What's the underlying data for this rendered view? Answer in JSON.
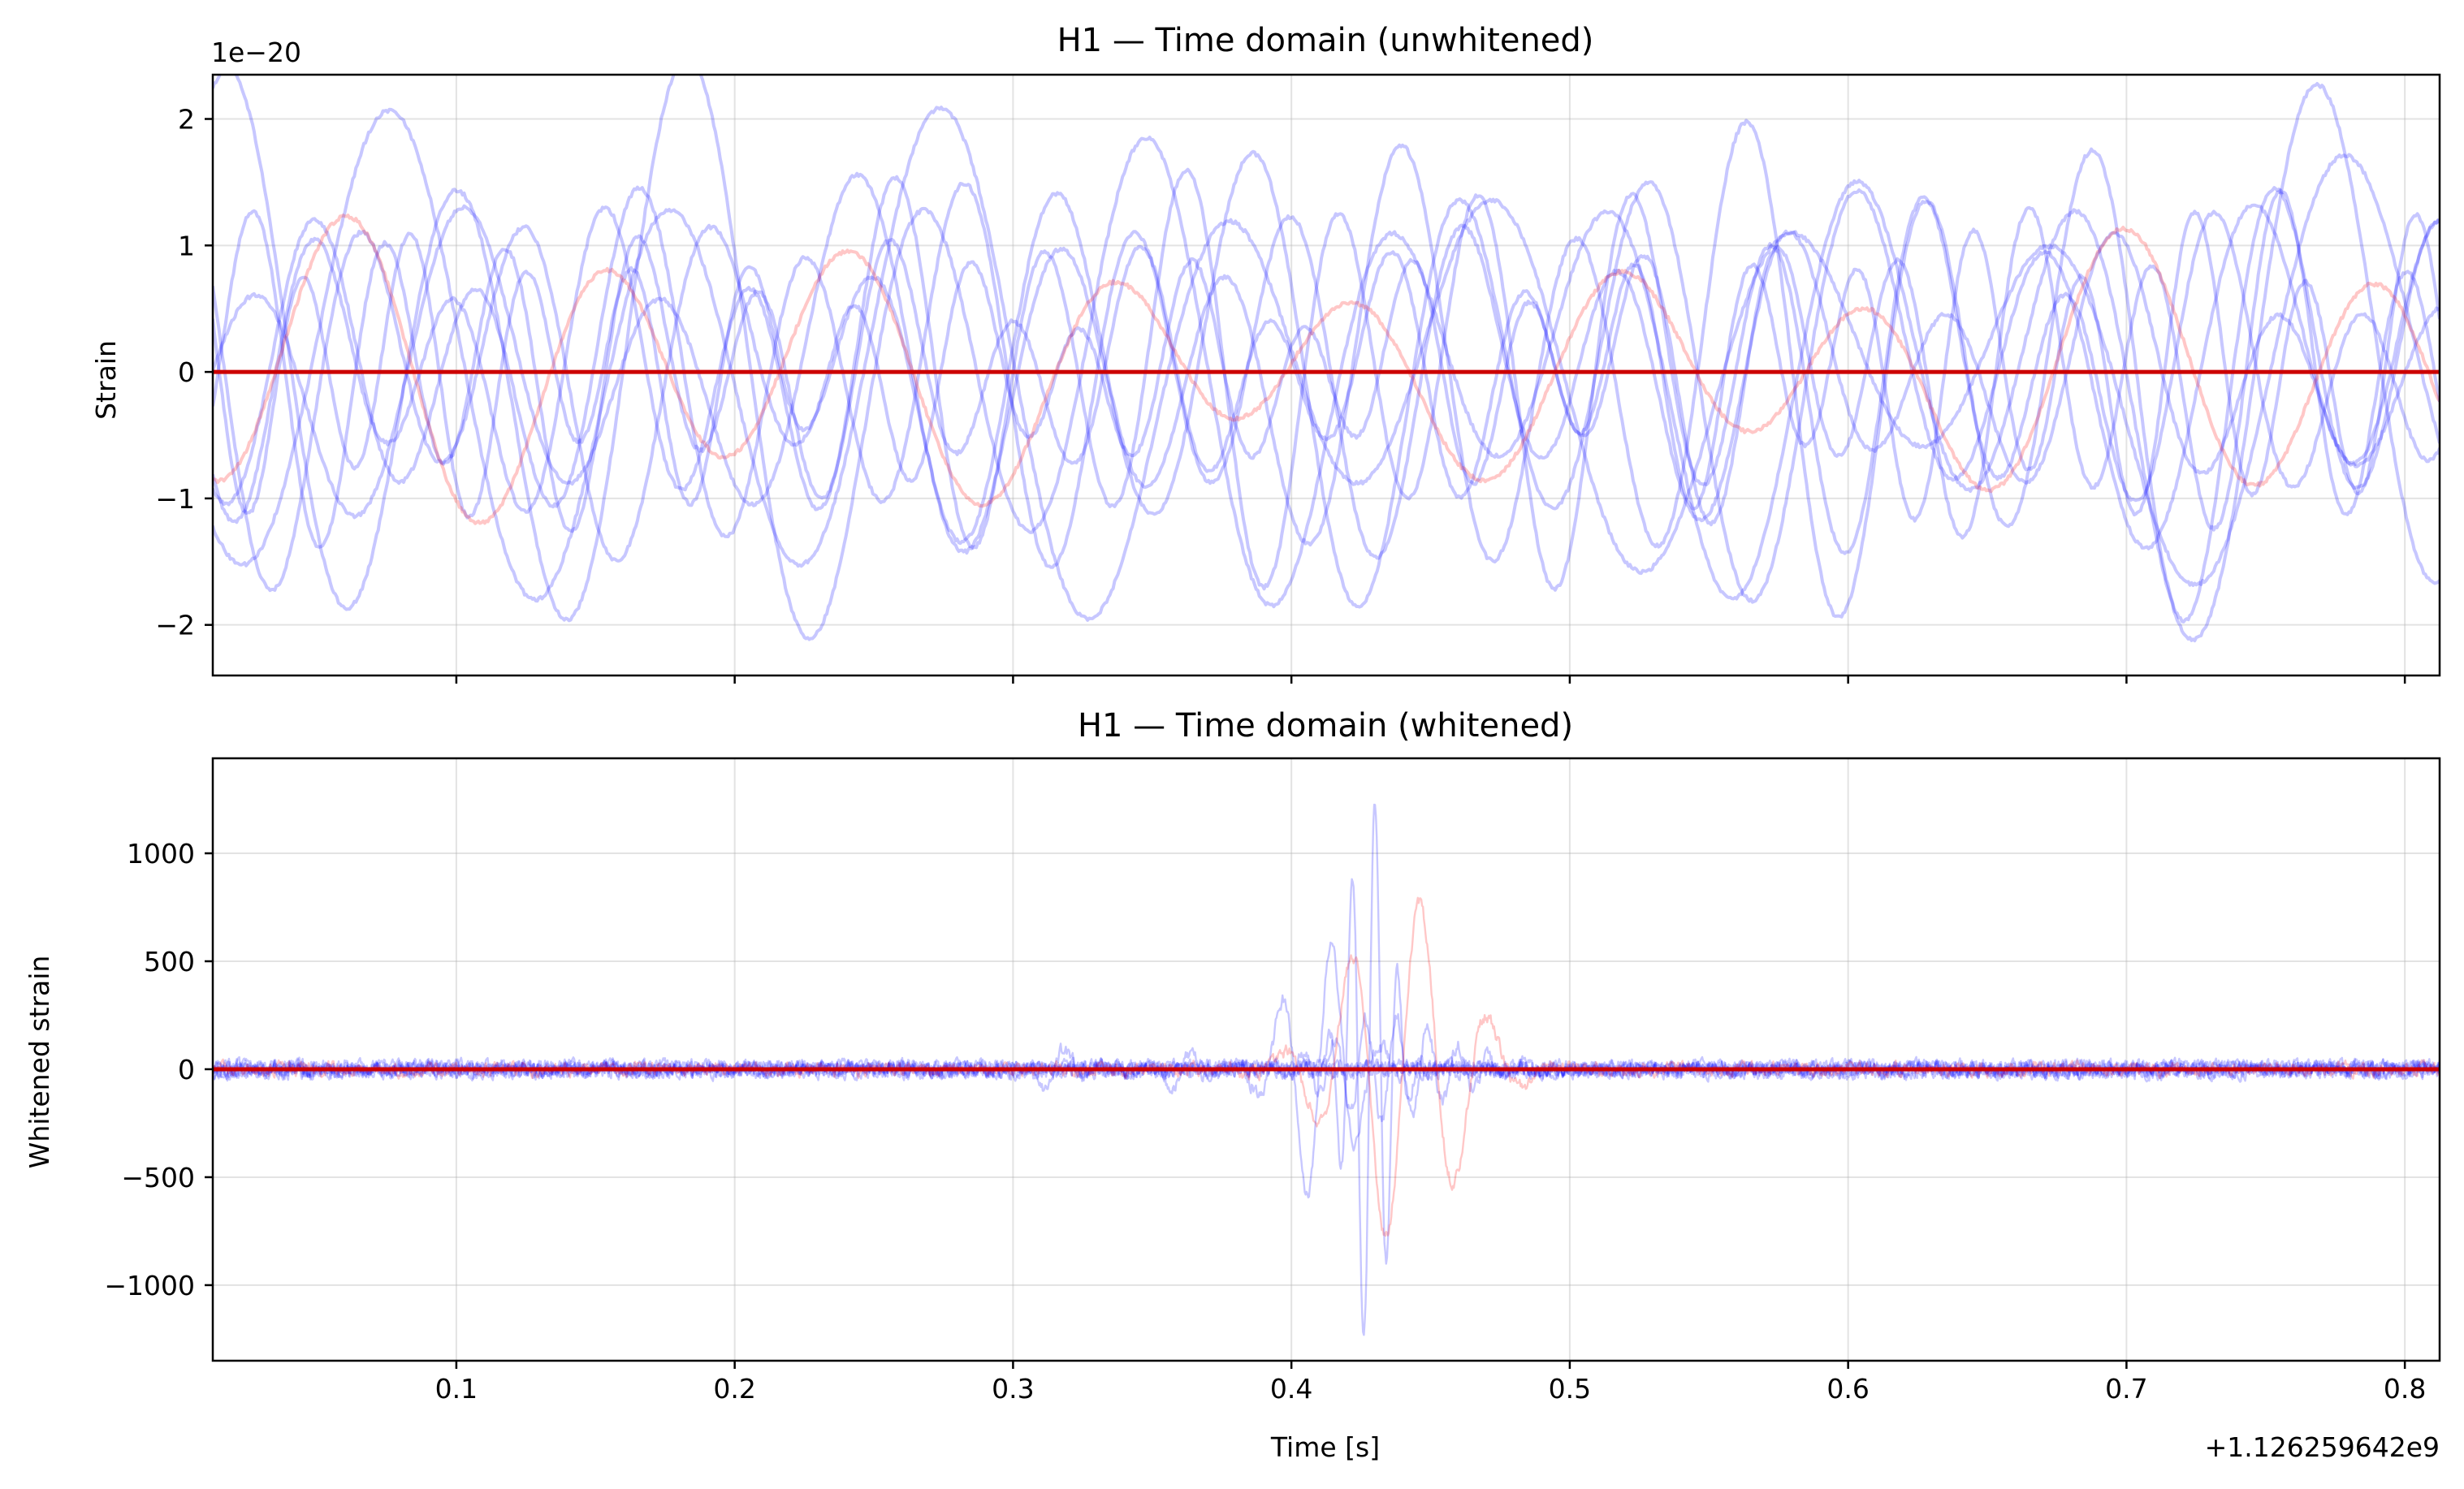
{
  "figure": {
    "offset_label": "+1.126259642e9",
    "colors": {
      "background": "#ffffff",
      "grid": "#b0b0b0",
      "axes": "#000000",
      "noise": "#0000ff",
      "signal": "#ff0000",
      "zero_line": "#cc0000"
    }
  },
  "chart_data": [
    {
      "type": "line",
      "title": "H1 — Time domain (unwhitened)",
      "xlabel": "",
      "ylabel": "Strain",
      "y_scale_label": "1e−20",
      "xlim": [
        0.0125,
        0.8125
      ],
      "ylim": [
        -2.4,
        2.35
      ],
      "y_multiplier": 1e-20,
      "grid": true,
      "xticks": [
        0.1,
        0.2,
        0.3,
        0.4,
        0.5,
        0.6,
        0.7,
        0.8
      ],
      "xtick_labels": [],
      "yticks": [
        -2,
        -1,
        0,
        1,
        2
      ],
      "ytick_labels": [
        "−2",
        "−1",
        "0",
        "1",
        "2"
      ],
      "series": [
        {
          "name": "",
          "color": "#0000ff",
          "alpha": 0.22,
          "kind": "noise",
          "amplitude": 1.6,
          "frequency_hz": 12,
          "phase": 0.3
        },
        {
          "name": "",
          "color": "#0000ff",
          "alpha": 0.22,
          "kind": "noise",
          "amplitude": 1.3,
          "frequency_hz": 16,
          "phase": 1.4
        },
        {
          "name": "",
          "color": "#0000ff",
          "alpha": 0.22,
          "kind": "noise",
          "amplitude": 1.1,
          "frequency_hz": 19,
          "phase": 2.2
        },
        {
          "name": "",
          "color": "#0000ff",
          "alpha": 0.22,
          "kind": "noise",
          "amplitude": 1.4,
          "frequency_hz": 10,
          "phase": 3.1
        },
        {
          "name": "",
          "color": "#0000ff",
          "alpha": 0.22,
          "kind": "noise",
          "amplitude": 0.9,
          "frequency_hz": 22,
          "phase": 4.0
        },
        {
          "name": "",
          "color": "#0000ff",
          "alpha": 0.22,
          "kind": "noise",
          "amplitude": 1.2,
          "frequency_hz": 14,
          "phase": 5.2
        },
        {
          "name": "",
          "color": "#0000ff",
          "alpha": 0.22,
          "kind": "noise",
          "amplitude": 0.8,
          "frequency_hz": 25,
          "phase": 0.9
        },
        {
          "name": "",
          "color": "#0000ff",
          "alpha": 0.22,
          "kind": "noise",
          "amplitude": 1.0,
          "frequency_hz": 17,
          "phase": 2.7
        },
        {
          "name": "",
          "color": "#ff0000",
          "alpha": 0.22,
          "kind": "noise",
          "amplitude": 0.8,
          "frequency_hz": 11,
          "phase": 3.6
        },
        {
          "name": "",
          "color": "#cc0000",
          "alpha": 1.0,
          "kind": "flat",
          "x": [
            0.0125,
            0.8125
          ],
          "y": [
            0,
            0
          ]
        }
      ]
    },
    {
      "type": "line",
      "title": "H1 — Time domain (whitened)",
      "xlabel": "Time [s]",
      "ylabel": "Whitened strain",
      "xlim": [
        0.0125,
        0.8125
      ],
      "ylim": [
        -1350,
        1440
      ],
      "grid": true,
      "xticks": [
        0.1,
        0.2,
        0.3,
        0.4,
        0.5,
        0.6,
        0.7,
        0.8
      ],
      "xtick_labels": [
        "0.1",
        "0.2",
        "0.3",
        "0.4",
        "0.5",
        "0.6",
        "0.7",
        "0.8"
      ],
      "yticks": [
        -1000,
        -500,
        0,
        500,
        1000
      ],
      "ytick_labels": [
        "−1000",
        "−500",
        "0",
        "500",
        "1000"
      ],
      "series": [
        {
          "name": "",
          "color": "#0000ff",
          "alpha": 0.22,
          "kind": "burst",
          "noise_amplitude": 35,
          "burst_center": 0.41,
          "burst_width": 0.012,
          "burst_amplitude": 600,
          "burst_freq_hz": 55
        },
        {
          "name": "",
          "color": "#0000ff",
          "alpha": 0.22,
          "kind": "burst",
          "noise_amplitude": 35,
          "burst_center": 0.428,
          "burst_width": 0.007,
          "burst_amplitude": 1300,
          "burst_freq_hz": 120
        },
        {
          "name": "",
          "color": "#0000ff",
          "alpha": 0.22,
          "kind": "burst",
          "noise_amplitude": 35,
          "burst_center": 0.435,
          "burst_width": 0.02,
          "burst_amplitude": 250,
          "burst_freq_hz": 90
        },
        {
          "name": "",
          "color": "#0000ff",
          "alpha": 0.22,
          "kind": "burst",
          "noise_amplitude": 35,
          "burst_center": 0.315,
          "burst_width": 0.006,
          "burst_amplitude": 120,
          "burst_freq_hz": 60
        },
        {
          "name": "",
          "color": "#0000ff",
          "alpha": 0.22,
          "kind": "burst",
          "noise_amplitude": 35,
          "burst_center": 0.36,
          "burst_width": 0.006,
          "burst_amplitude": 100,
          "burst_freq_hz": 70
        },
        {
          "name": "",
          "color": "#0000ff",
          "alpha": 0.22,
          "kind": "burst",
          "noise_amplitude": 35,
          "burst_center": 0.6,
          "burst_width": 0.01,
          "burst_amplitude": 20,
          "burst_freq_hz": 50
        },
        {
          "name": "",
          "color": "#ff0000",
          "alpha": 0.22,
          "kind": "burst",
          "noise_amplitude": 30,
          "burst_center": 0.44,
          "burst_width": 0.02,
          "burst_amplitude": 800,
          "burst_freq_hz": 40
        },
        {
          "name": "",
          "color": "#cc0000",
          "alpha": 1.0,
          "kind": "flat",
          "x": [
            0.0125,
            0.8125
          ],
          "y": [
            0,
            0
          ]
        }
      ]
    }
  ]
}
